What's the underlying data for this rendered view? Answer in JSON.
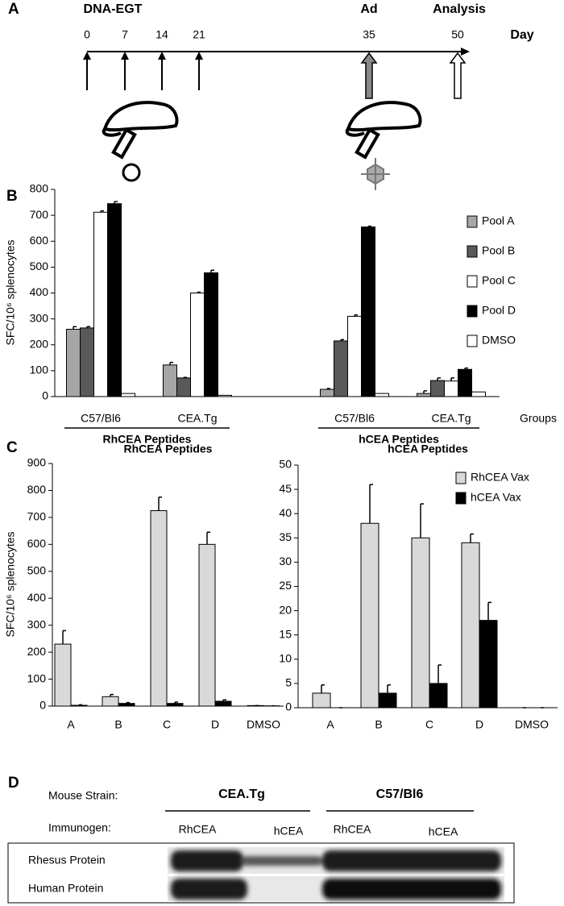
{
  "panel_labels": [
    "A",
    "B",
    "C",
    "D"
  ],
  "timeline": {
    "prime_label": "DNA-EGT",
    "boost_label": "Ad",
    "analysis_label": "Analysis",
    "axis_label": "Day",
    "days": [
      0,
      7,
      14,
      21,
      35,
      50
    ]
  },
  "chart_data": [
    {
      "type": "bar",
      "y_label": "SFC/10⁶ splenocytes",
      "x_label": "Groups",
      "categories": [
        "C57/Bl6",
        "CEA.Tg",
        "C57/Bl6",
        "CEA.Tg"
      ],
      "group_labels": [
        "RhCEA Peptides",
        "hCEA Peptides"
      ],
      "ylim": [
        0,
        800
      ],
      "yticks": [
        0,
        100,
        200,
        300,
        400,
        500,
        600,
        700,
        800
      ],
      "legend": "right",
      "series": [
        {
          "name": "Pool A",
          "color": "#a6a6a6",
          "values": [
            260,
            122,
            28,
            12
          ],
          "errors": [
            10,
            10,
            3,
            10
          ]
        },
        {
          "name": "Pool B",
          "color": "#595959",
          "values": [
            265,
            72,
            215,
            62
          ],
          "errors": [
            5,
            2,
            5,
            10
          ]
        },
        {
          "name": "Pool C",
          "color": "#ffffff",
          "values": [
            712,
            400,
            310,
            60
          ],
          "errors": [
            5,
            3,
            5,
            12
          ]
        },
        {
          "name": "Pool D",
          "color": "#000000",
          "values": [
            745,
            478,
            655,
            105
          ],
          "errors": [
            8,
            10,
            3,
            5
          ]
        },
        {
          "name": "DMSO",
          "color": "#ffffff",
          "values": [
            12,
            5,
            12,
            18
          ]
        }
      ]
    },
    {
      "type": "bar",
      "title": "RhCEA Peptides",
      "y_label": "SFC/10⁶ splenocytes",
      "categories": [
        "A",
        "B",
        "C",
        "D",
        "DMSO"
      ],
      "ylim": [
        0,
        900
      ],
      "yticks": [
        0,
        100,
        200,
        300,
        400,
        500,
        600,
        700,
        800,
        900
      ],
      "series": [
        {
          "color": "#d9d9d9",
          "values": [
            230,
            35,
            725,
            600,
            2
          ],
          "errors": [
            50,
            8,
            50,
            45,
            0
          ]
        },
        {
          "color": "#000000",
          "values": [
            3,
            10,
            10,
            18,
            1
          ],
          "errors": [
            2,
            3,
            5,
            5,
            0
          ]
        }
      ]
    },
    {
      "type": "bar",
      "title": "hCEA Peptides",
      "categories": [
        "A",
        "B",
        "C",
        "D",
        "DMSO"
      ],
      "ylim": [
        0,
        50
      ],
      "yticks": [
        0,
        5,
        10,
        15,
        20,
        25,
        30,
        35,
        40,
        45,
        50
      ],
      "legend": "top-right",
      "series": [
        {
          "name": "RhCEA Vax",
          "color": "#d9d9d9",
          "values": [
            3,
            38,
            35,
            34,
            0
          ],
          "errors": [
            1.7,
            8,
            7,
            1.8,
            0
          ]
        },
        {
          "name": "hCEA Vax",
          "color": "#000000",
          "values": [
            0,
            3,
            5,
            18,
            0
          ],
          "errors": [
            0,
            1.7,
            3.8,
            3.7,
            0
          ]
        }
      ]
    }
  ],
  "blot": {
    "strain_header": "Mouse Strain:",
    "immunogen_header": "Immunogen:",
    "strains": [
      "CEA.Tg",
      "C57/Bl6"
    ],
    "immunogens": [
      "RhCEA",
      "hCEA",
      "RhCEA",
      "hCEA"
    ],
    "rows": [
      "Rhesus Protein",
      "Human Protein"
    ]
  }
}
